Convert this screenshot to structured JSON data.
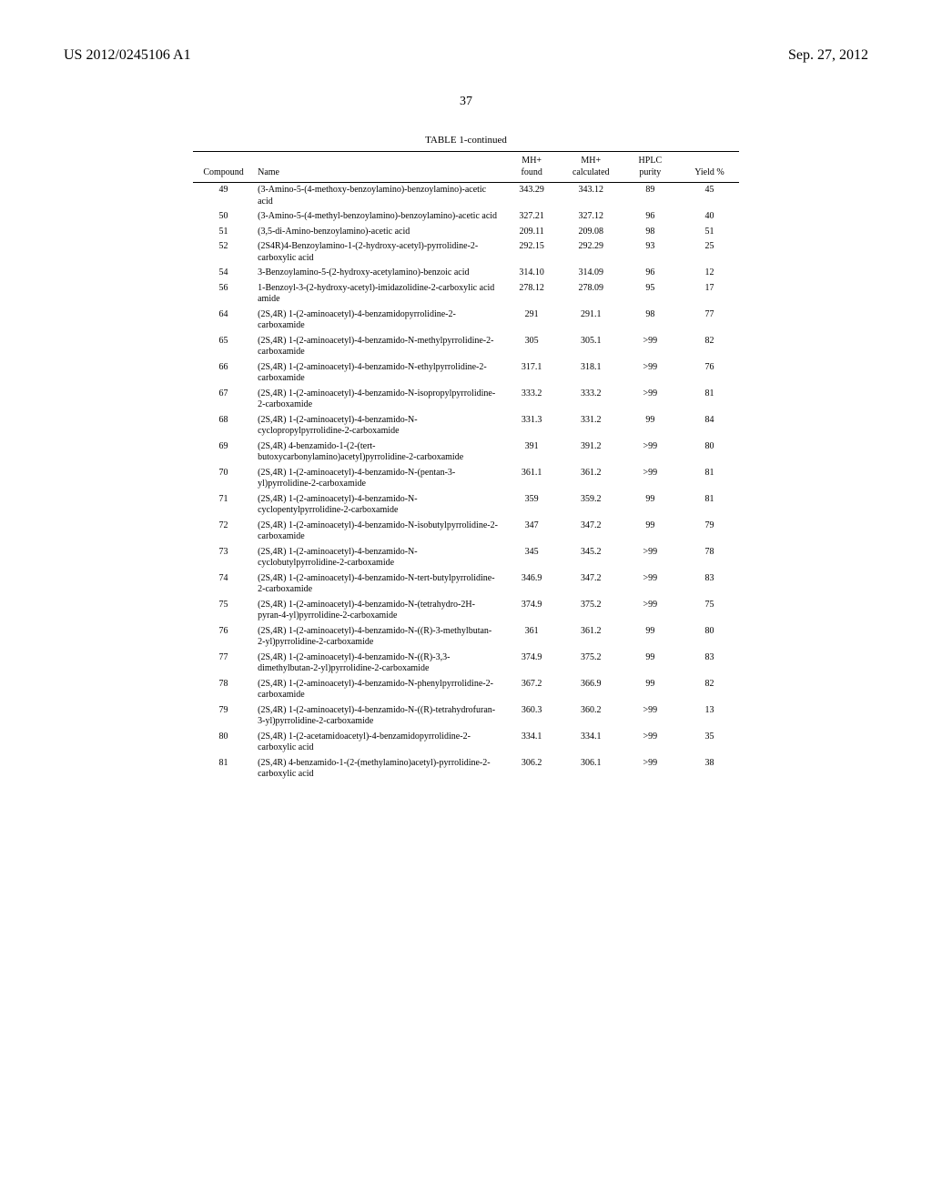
{
  "header": {
    "left": "US 2012/0245106 A1",
    "right": "Sep. 27, 2012"
  },
  "page_number": "37",
  "table": {
    "caption": "TABLE 1-continued",
    "columns": {
      "compound": "Compound",
      "name": "Name",
      "mh_found_l1": "MH+",
      "mh_found_l2": "found",
      "mh_calc_l1": "MH+",
      "mh_calc_l2": "calculated",
      "hplc_l1": "HPLC",
      "hplc_l2": "purity",
      "yield": "Yield %"
    },
    "rows": [
      {
        "compound": "49",
        "name": "(3-Amino-5-(4-methoxy-benzoylamino)-benzoylamino)-acetic acid",
        "mh_found": "343.29",
        "mh_calc": "343.12",
        "hplc": "89",
        "yield": "45"
      },
      {
        "compound": "50",
        "name": "(3-Amino-5-(4-methyl-benzoylamino)-benzoylamino)-acetic acid",
        "mh_found": "327.21",
        "mh_calc": "327.12",
        "hplc": "96",
        "yield": "40"
      },
      {
        "compound": "51",
        "name": "(3,5-di-Amino-benzoylamino)-acetic acid",
        "mh_found": "209.11",
        "mh_calc": "209.08",
        "hplc": "98",
        "yield": "51"
      },
      {
        "compound": "52",
        "name": "(2S4R)4-Benzoylamino-1-(2-hydroxy-acetyl)-pyrrolidine-2-carboxylic acid",
        "mh_found": "292.15",
        "mh_calc": "292.29",
        "hplc": "93",
        "yield": "25"
      },
      {
        "compound": "54",
        "name": "3-Benzoylamino-5-(2-hydroxy-acetylamino)-benzoic acid",
        "mh_found": "314.10",
        "mh_calc": "314.09",
        "hplc": "96",
        "yield": "12"
      },
      {
        "compound": "56",
        "name": "1-Benzoyl-3-(2-hydroxy-acetyl)-imidazolidine-2-carboxylic acid amide",
        "mh_found": "278.12",
        "mh_calc": "278.09",
        "hplc": "95",
        "yield": "17"
      },
      {
        "compound": "64",
        "name": "(2S,4R) 1-(2-aminoacetyl)-4-benzamidopyrrolidine-2-carboxamide",
        "mh_found": "291",
        "mh_calc": "291.1",
        "hplc": "98",
        "yield": "77"
      },
      {
        "compound": "65",
        "name": "(2S,4R) 1-(2-aminoacetyl)-4-benzamido-N-methylpyrrolidine-2-carboxamide",
        "mh_found": "305",
        "mh_calc": "305.1",
        "hplc": ">99",
        "yield": "82"
      },
      {
        "compound": "66",
        "name": "(2S,4R) 1-(2-aminoacetyl)-4-benzamido-N-ethylpyrrolidine-2-carboxamide",
        "mh_found": "317.1",
        "mh_calc": "318.1",
        "hplc": ">99",
        "yield": "76"
      },
      {
        "compound": "67",
        "name": "(2S,4R) 1-(2-aminoacetyl)-4-benzamido-N-isopropylpyrrolidine-2-carboxamide",
        "mh_found": "333.2",
        "mh_calc": "333.2",
        "hplc": ">99",
        "yield": "81"
      },
      {
        "compound": "68",
        "name": "(2S,4R) 1-(2-aminoacetyl)-4-benzamido-N-cyclopropylpyrrolidine-2-carboxamide",
        "mh_found": "331.3",
        "mh_calc": "331.2",
        "hplc": "99",
        "yield": "84"
      },
      {
        "compound": "69",
        "name": "(2S,4R) 4-benzamido-1-(2-(tert-butoxycarbonylamino)acetyl)pyrrolidine-2-carboxamide",
        "mh_found": "391",
        "mh_calc": "391.2",
        "hplc": ">99",
        "yield": "80"
      },
      {
        "compound": "70",
        "name": "(2S,4R) 1-(2-aminoacetyl)-4-benzamido-N-(pentan-3-yl)pyrrolidine-2-carboxamide",
        "mh_found": "361.1",
        "mh_calc": "361.2",
        "hplc": ">99",
        "yield": "81"
      },
      {
        "compound": "71",
        "name": "(2S,4R) 1-(2-aminoacetyl)-4-benzamido-N-cyclopentylpyrrolidine-2-carboxamide",
        "mh_found": "359",
        "mh_calc": "359.2",
        "hplc": "99",
        "yield": "81"
      },
      {
        "compound": "72",
        "name": "(2S,4R) 1-(2-aminoacetyl)-4-benzamido-N-isobutylpyrrolidine-2-carboxamide",
        "mh_found": "347",
        "mh_calc": "347.2",
        "hplc": "99",
        "yield": "79"
      },
      {
        "compound": "73",
        "name": "(2S,4R) 1-(2-aminoacetyl)-4-benzamido-N-cyclobutylpyrrolidine-2-carboxamide",
        "mh_found": "345",
        "mh_calc": "345.2",
        "hplc": ">99",
        "yield": "78"
      },
      {
        "compound": "74",
        "name": "(2S,4R) 1-(2-aminoacetyl)-4-benzamido-N-tert-butylpyrrolidine-2-carboxamide",
        "mh_found": "346.9",
        "mh_calc": "347.2",
        "hplc": ">99",
        "yield": "83"
      },
      {
        "compound": "75",
        "name": "(2S,4R) 1-(2-aminoacetyl)-4-benzamido-N-(tetrahydro-2H-pyran-4-yl)pyrrolidine-2-carboxamide",
        "mh_found": "374.9",
        "mh_calc": "375.2",
        "hplc": ">99",
        "yield": "75"
      },
      {
        "compound": "76",
        "name": "(2S,4R) 1-(2-aminoacetyl)-4-benzamido-N-((R)-3-methylbutan-2-yl)pyrrolidine-2-carboxamide",
        "mh_found": "361",
        "mh_calc": "361.2",
        "hplc": "99",
        "yield": "80"
      },
      {
        "compound": "77",
        "name": "(2S,4R) 1-(2-aminoacetyl)-4-benzamido-N-((R)-3,3-dimethylbutan-2-yl)pyrrolidine-2-carboxamide",
        "mh_found": "374.9",
        "mh_calc": "375.2",
        "hplc": "99",
        "yield": "83"
      },
      {
        "compound": "78",
        "name": "(2S,4R) 1-(2-aminoacetyl)-4-benzamido-N-phenylpyrrolidine-2-carboxamide",
        "mh_found": "367.2",
        "mh_calc": "366.9",
        "hplc": "99",
        "yield": "82"
      },
      {
        "compound": "79",
        "name": "(2S,4R) 1-(2-aminoacetyl)-4-benzamido-N-((R)-tetrahydrofuran-3-yl)pyrrolidine-2-carboxamide",
        "mh_found": "360.3",
        "mh_calc": "360.2",
        "hplc": ">99",
        "yield": "13"
      },
      {
        "compound": "80",
        "name": "(2S,4R) 1-(2-acetamidoacetyl)-4-benzamidopyrrolidine-2-carboxylic acid",
        "mh_found": "334.1",
        "mh_calc": "334.1",
        "hplc": ">99",
        "yield": "35"
      },
      {
        "compound": "81",
        "name": "(2S,4R) 4-benzamido-1-(2-(methylamino)acetyl)-pyrrolidine-2-carboxylic acid",
        "mh_found": "306.2",
        "mh_calc": "306.1",
        "hplc": ">99",
        "yield": "38"
      }
    ]
  }
}
